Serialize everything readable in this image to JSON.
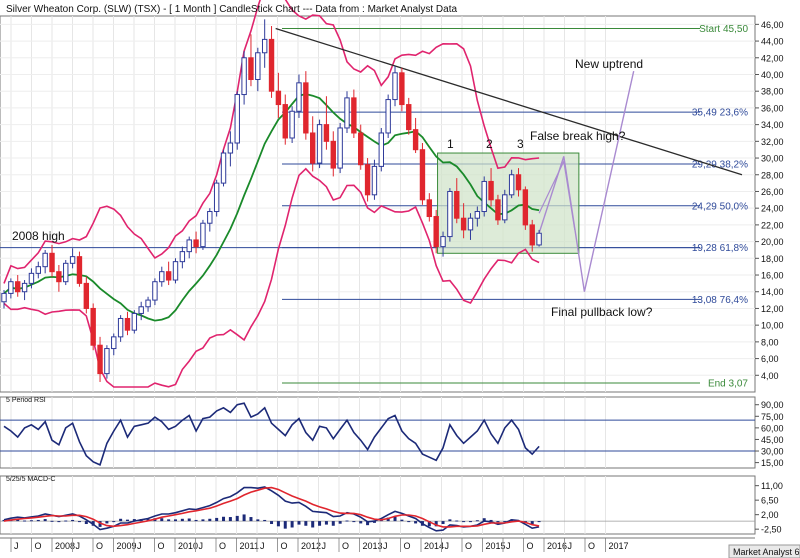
{
  "chart_data": [
    {
      "type": "candlestick",
      "title": "Silver Wheaton Corp. (SLW) (TSX) -  [ 1 Month ] CandleStick Chart --- Data from : Market Analyst Data",
      "ylim": [
        2,
        47
      ],
      "y_ticks": [
        "46,00",
        "44,00",
        "42,00",
        "40,00",
        "38,00",
        "36,00",
        "34,00",
        "32,00",
        "30,00",
        "28,00",
        "26,00",
        "24,00",
        "22,00",
        "20,00",
        "18,00",
        "16,00",
        "14,00",
        "12,00",
        "10,00",
        "8,00",
        "6,00",
        "4,00"
      ],
      "x_ticks": [
        "J",
        "O",
        "2008",
        "J",
        "O",
        "2009",
        "J",
        "O",
        "2010",
        "J",
        "O",
        "2011",
        "J",
        "O",
        "2012",
        "J",
        "O",
        "2013",
        "J",
        "O",
        "2014",
        "J",
        "O",
        "2015",
        "J",
        "O",
        "2016",
        "J",
        "O",
        "2017"
      ],
      "grid": true,
      "candles": [
        [
          12.8,
          14.2,
          12.0,
          13.8
        ],
        [
          13.8,
          15.6,
          13.2,
          15.2
        ],
        [
          15.2,
          16.0,
          13.4,
          14.0
        ],
        [
          14.0,
          15.4,
          13.0,
          15.0
        ],
        [
          15.0,
          16.8,
          14.4,
          16.2
        ],
        [
          16.2,
          17.6,
          15.6,
          17.0
        ],
        [
          17.0,
          19.0,
          16.2,
          18.6
        ],
        [
          18.6,
          19.6,
          15.8,
          16.4
        ],
        [
          16.4,
          17.2,
          14.0,
          15.2
        ],
        [
          15.2,
          17.8,
          14.8,
          17.4
        ],
        [
          17.4,
          19.2,
          16.8,
          18.2
        ],
        [
          18.2,
          18.8,
          14.6,
          15.0
        ],
        [
          15.0,
          15.8,
          11.4,
          12.0
        ],
        [
          12.0,
          12.6,
          7.0,
          7.6
        ],
        [
          7.6,
          8.6,
          3.2,
          4.2
        ],
        [
          4.2,
          7.6,
          3.6,
          7.2
        ],
        [
          7.2,
          9.0,
          6.4,
          8.6
        ],
        [
          8.6,
          11.2,
          8.0,
          10.8
        ],
        [
          10.8,
          11.6,
          8.8,
          9.4
        ],
        [
          9.4,
          11.8,
          9.0,
          11.4
        ],
        [
          11.4,
          12.8,
          10.6,
          12.2
        ],
        [
          12.2,
          13.4,
          11.6,
          13.0
        ],
        [
          13.0,
          15.6,
          12.4,
          15.2
        ],
        [
          15.2,
          17.0,
          14.6,
          16.4
        ],
        [
          16.4,
          17.6,
          14.8,
          15.4
        ],
        [
          15.4,
          18.0,
          15.0,
          17.6
        ],
        [
          17.6,
          19.4,
          16.8,
          18.8
        ],
        [
          18.8,
          20.6,
          18.0,
          20.2
        ],
        [
          20.2,
          21.2,
          18.6,
          19.4
        ],
        [
          19.4,
          22.6,
          19.0,
          22.2
        ],
        [
          22.2,
          24.0,
          21.2,
          23.6
        ],
        [
          23.6,
          27.4,
          23.0,
          27.0
        ],
        [
          27.0,
          31.0,
          26.6,
          30.6
        ],
        [
          30.6,
          33.2,
          29.0,
          31.8
        ],
        [
          31.8,
          38.0,
          31.0,
          37.6
        ],
        [
          37.6,
          42.8,
          36.4,
          42.0
        ],
        [
          42.0,
          44.8,
          38.6,
          39.4
        ],
        [
          39.4,
          43.2,
          38.0,
          42.6
        ],
        [
          42.6,
          46.6,
          40.8,
          44.2
        ],
        [
          44.2,
          45.8,
          37.2,
          38.0
        ],
        [
          38.0,
          40.2,
          34.8,
          36.4
        ],
        [
          36.4,
          37.6,
          31.6,
          32.4
        ],
        [
          32.4,
          36.2,
          31.8,
          35.6
        ],
        [
          35.6,
          40.0,
          34.8,
          39.0
        ],
        [
          39.0,
          40.4,
          32.2,
          33.0
        ],
        [
          33.0,
          35.0,
          28.4,
          29.4
        ],
        [
          29.4,
          34.6,
          28.8,
          34.0
        ],
        [
          34.0,
          37.4,
          31.0,
          32.0
        ],
        [
          32.0,
          33.2,
          27.8,
          28.8
        ],
        [
          28.8,
          34.2,
          28.2,
          33.6
        ],
        [
          33.6,
          38.0,
          33.0,
          37.2
        ],
        [
          37.2,
          38.2,
          32.4,
          33.0
        ],
        [
          33.0,
          34.0,
          28.6,
          29.2
        ],
        [
          29.2,
          30.0,
          24.8,
          25.6
        ],
        [
          25.6,
          29.8,
          25.0,
          29.0
        ],
        [
          29.0,
          33.6,
          28.4,
          33.0
        ],
        [
          33.0,
          37.6,
          32.4,
          37.0
        ],
        [
          37.0,
          41.0,
          36.2,
          40.2
        ],
        [
          40.2,
          40.8,
          35.6,
          36.4
        ],
        [
          36.4,
          37.2,
          32.8,
          33.4
        ],
        [
          33.4,
          34.8,
          30.6,
          31.0
        ],
        [
          31.0,
          31.8,
          24.4,
          25.0
        ],
        [
          25.0,
          25.8,
          22.4,
          23.0
        ],
        [
          23.0,
          23.8,
          18.6,
          19.4
        ],
        [
          19.4,
          21.2,
          18.2,
          20.6
        ],
        [
          20.6,
          26.4,
          20.0,
          26.0
        ],
        [
          26.0,
          27.6,
          22.2,
          22.8
        ],
        [
          22.8,
          24.6,
          20.4,
          21.4
        ],
        [
          21.4,
          23.4,
          20.2,
          22.8
        ],
        [
          22.8,
          24.2,
          21.8,
          23.6
        ],
        [
          23.6,
          27.8,
          23.0,
          27.2
        ],
        [
          27.2,
          28.8,
          24.2,
          25.0
        ],
        [
          25.0,
          25.6,
          22.0,
          22.6
        ],
        [
          22.6,
          26.2,
          22.2,
          25.6
        ],
        [
          25.6,
          28.6,
          25.2,
          28.0
        ],
        [
          28.0,
          28.8,
          25.4,
          26.2
        ],
        [
          26.2,
          26.6,
          21.4,
          22.0
        ],
        [
          22.0,
          22.6,
          18.8,
          19.6
        ],
        [
          19.6,
          21.4,
          19.4,
          21.0
        ]
      ],
      "overlays": {
        "moving_average_color": "#1a8a2a",
        "bollinger_color": "#e0246e",
        "projection_color": "#a98ad0",
        "trendline_color": "#2b2b2b"
      },
      "levels": [
        {
          "label": "Start 45,50",
          "value": 45.5,
          "color": "#3a8a3a"
        },
        {
          "label": "35,49 23,6%",
          "value": 35.49,
          "color": "#2f4a9a"
        },
        {
          "label": "29,29 38,2%",
          "value": 29.29,
          "color": "#2f4a9a"
        },
        {
          "label": "24,29 50,0%",
          "value": 24.29,
          "color": "#2f4a9a"
        },
        {
          "label": "19,28 61,8%",
          "value": 19.28,
          "color": "#2f4a9a"
        },
        {
          "label": "13,08 76,4%",
          "value": 13.08,
          "color": "#2f4a9a"
        },
        {
          "label": "End 3,07",
          "value": 3.07,
          "color": "#3a8a3a"
        }
      ],
      "annotations": {
        "high_2008": "2008 high",
        "new_uptrend": "New uptrend",
        "false_break": "False break high?",
        "final_pullback": "Final pullback low?",
        "marker_1": "1",
        "marker_2": "2",
        "marker_3": "3"
      },
      "colors": {
        "up": "#2f3b9a",
        "down": "#e0262e"
      }
    },
    {
      "type": "line",
      "title": "5 Period RSI",
      "y_ticks": [
        "90,00",
        "75,00",
        "60,00",
        "45,00",
        "30,00",
        "15,00"
      ],
      "ylim": [
        8,
        100
      ],
      "levels": [
        70,
        30
      ],
      "values": [
        62,
        56,
        48,
        60,
        64,
        58,
        68,
        44,
        38,
        60,
        66,
        42,
        24,
        16,
        12,
        40,
        56,
        70,
        48,
        62,
        64,
        66,
        74,
        68,
        58,
        62,
        70,
        76,
        56,
        72,
        74,
        82,
        86,
        80,
        90,
        92,
        74,
        78,
        86,
        66,
        58,
        50,
        64,
        72,
        54,
        44,
        62,
        60,
        46,
        58,
        70,
        54,
        44,
        32,
        48,
        60,
        72,
        76,
        56,
        46,
        40,
        26,
        22,
        18,
        34,
        64,
        50,
        40,
        48,
        56,
        70,
        52,
        40,
        60,
        70,
        58,
        34,
        26,
        36
      ],
      "color": "#1c2a78"
    },
    {
      "type": "line",
      "title": "5/25/5 MACD-C",
      "y_ticks": [
        "11,00",
        "6,50",
        "2,00",
        "-2,50"
      ],
      "ylim": [
        -4,
        14
      ],
      "series": [
        {
          "values": [
            0.4,
            0.9,
            1.2,
            1.0,
            1.3,
            1.6,
            2.2,
            1.8,
            1.4,
            1.8,
            2.2,
            1.6,
            0.4,
            -1.0,
            -2.6,
            -2.2,
            -1.6,
            -0.6,
            -0.6,
            0.0,
            0.4,
            0.8,
            1.6,
            2.2,
            2.2,
            2.6,
            3.2,
            3.8,
            3.6,
            4.2,
            4.8,
            5.8,
            7.0,
            7.6,
            8.8,
            10.4,
            10.4,
            10.2,
            10.6,
            9.4,
            8.0,
            6.2,
            5.6,
            5.8,
            4.6,
            3.0,
            2.8,
            2.6,
            1.4,
            1.6,
            2.6,
            2.2,
            1.2,
            -0.2,
            0.0,
            0.8,
            2.0,
            3.0,
            2.4,
            1.6,
            0.8,
            -0.8,
            -2.0,
            -3.0,
            -2.8,
            -1.2,
            -1.4,
            -1.8,
            -1.6,
            -1.2,
            0.0,
            -0.2,
            -1.0,
            -0.6,
            0.4,
            0.2,
            -1.0,
            -2.2,
            -1.8
          ],
          "color": "#1c2a78"
        },
        {
          "values": [
            0.0,
            0.3,
            0.6,
            0.8,
            1.0,
            1.2,
            1.5,
            1.7,
            1.6,
            1.6,
            1.8,
            1.8,
            1.4,
            0.6,
            -0.6,
            -1.4,
            -1.6,
            -1.4,
            -1.1,
            -0.7,
            -0.3,
            0.1,
            0.6,
            1.2,
            1.6,
            2.0,
            2.4,
            2.9,
            3.2,
            3.6,
            4.0,
            4.7,
            5.5,
            6.2,
            7.0,
            8.1,
            9.0,
            9.6,
            10.2,
            10.4,
            9.8,
            8.8,
            7.8,
            7.0,
            6.2,
            5.2,
            4.4,
            3.8,
            3.0,
            2.5,
            2.4,
            2.4,
            2.0,
            1.2,
            0.6,
            0.4,
            0.8,
            1.5,
            1.9,
            1.9,
            1.6,
            0.8,
            -0.2,
            -1.2,
            -1.8,
            -1.8,
            -1.6,
            -1.6,
            -1.6,
            -1.5,
            -1.0,
            -0.6,
            -0.6,
            -0.6,
            -0.2,
            0.0,
            -0.4,
            -1.1,
            -1.5
          ],
          "color": "#e0262e"
        }
      ]
    }
  ],
  "footer": {
    "brand": "Market Analyst 6"
  }
}
